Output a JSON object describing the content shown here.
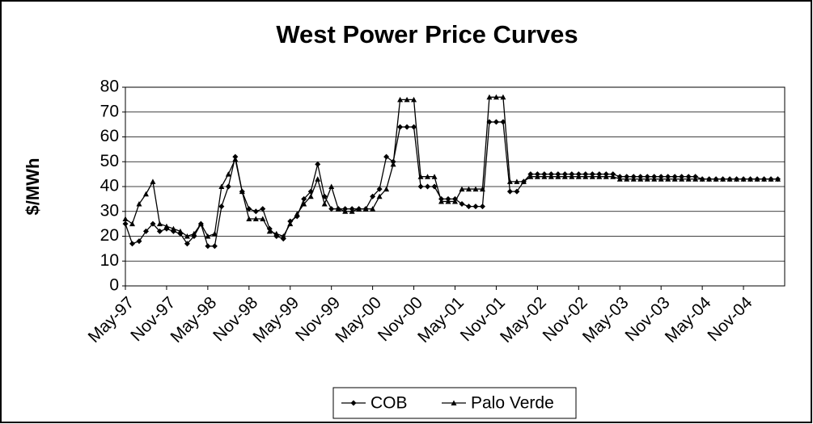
{
  "chart_data": {
    "type": "line",
    "title": "West Power Price Curves",
    "y_label": "$/MWh",
    "categories": [
      "May-97",
      null,
      null,
      null,
      null,
      null,
      "Nov-97",
      null,
      null,
      null,
      null,
      null,
      "May-98",
      null,
      null,
      null,
      null,
      null,
      "Nov-98",
      null,
      null,
      null,
      null,
      null,
      "May-99",
      null,
      null,
      null,
      null,
      null,
      "Nov-99",
      null,
      null,
      null,
      null,
      null,
      "May-00",
      null,
      null,
      null,
      null,
      null,
      "Nov-00",
      null,
      null,
      null,
      null,
      null,
      "May-01",
      null,
      null,
      null,
      null,
      null,
      "Nov-01",
      null,
      null,
      null,
      null,
      null,
      "May-02",
      null,
      null,
      null,
      null,
      null,
      "Nov-02",
      null,
      null,
      null,
      null,
      null,
      "May-03",
      null,
      null,
      null,
      null,
      null,
      "Nov-03",
      null,
      null,
      null,
      null,
      null,
      "May-04",
      null,
      null,
      null,
      null,
      null,
      "Nov-04",
      null,
      null,
      null,
      null,
      null
    ],
    "series": [
      {
        "name": "COB",
        "color": "#000000",
        "marker": "diamond",
        "values": [
          25,
          17,
          18,
          22,
          25,
          22,
          23,
          22,
          21,
          17,
          20,
          25,
          16,
          16,
          32,
          40,
          52,
          38,
          31,
          30,
          31,
          23,
          20,
          19,
          26,
          28,
          35,
          38,
          49,
          36,
          31,
          31,
          31,
          31,
          31,
          31,
          36,
          39,
          52,
          50,
          64,
          64,
          64,
          40,
          40,
          40,
          35,
          35,
          35,
          33,
          32,
          32,
          32,
          66,
          66,
          66,
          38,
          38,
          42,
          45,
          45,
          45,
          45,
          45,
          45,
          45,
          45,
          45,
          45,
          45,
          45,
          45,
          44,
          44,
          44,
          44,
          44,
          44,
          44,
          44,
          44,
          44,
          44,
          44,
          43,
          43,
          43,
          43,
          43,
          43,
          43,
          43,
          43,
          43,
          43,
          43
        ]
      },
      {
        "name": "Palo Verde",
        "color": "#000000",
        "marker": "triangle",
        "values": [
          27,
          25,
          33,
          37,
          42,
          25,
          24,
          23,
          22,
          20,
          21,
          25,
          20,
          21,
          40,
          45,
          51,
          38,
          27,
          27,
          27,
          22,
          21,
          20,
          25,
          29,
          33,
          36,
          43,
          33,
          40,
          31,
          30,
          30,
          31,
          31,
          31,
          36,
          39,
          49,
          75,
          75,
          75,
          44,
          44,
          44,
          34,
          34,
          34,
          39,
          39,
          39,
          39,
          76,
          76,
          76,
          42,
          42,
          42,
          44,
          44,
          44,
          44,
          44,
          44,
          44,
          44,
          44,
          44,
          44,
          44,
          44,
          43,
          43,
          43,
          43,
          43,
          43,
          43,
          43,
          43,
          43,
          43,
          43,
          43,
          43,
          43,
          43,
          43,
          43,
          43,
          43,
          43,
          43,
          43,
          43
        ]
      }
    ],
    "ylim": [
      0,
      80
    ],
    "yticks": [
      0,
      10,
      20,
      30,
      40,
      50,
      60,
      70,
      80
    ],
    "grid": true,
    "legend": "bottom"
  }
}
